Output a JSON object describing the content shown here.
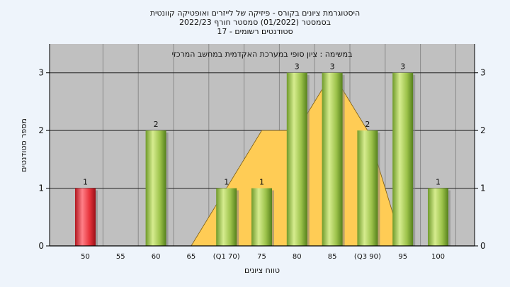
{
  "header": {
    "title_line1": "היסטוגרמת ציונים בקורס - פיזיקה של לייזרים ואופטיקה קוונטית",
    "title_line2": "בסמסטר (01/2022) סמסטר חורף 2022/23",
    "title_line3": "סטודנטים רשומים - 17"
  },
  "chart_data": {
    "type": "bar",
    "title": "היסטוגרמת ציונים בקורס - פיזיקה של לייזרים ואופטיקה קוונטית",
    "annotation": "במשימה : ציון סופי במערכת האקדמית במחשב המרכזי",
    "xlabel": "טווח ציונים",
    "ylabel": "מספר סטודנטים",
    "ylim": [
      0,
      3.5
    ],
    "yticks": [
      0,
      1,
      2,
      3
    ],
    "categories": [
      "50",
      "55",
      "60",
      "65",
      "(Q1 70)",
      "75",
      "80",
      "85",
      "(Q3 90)",
      "95",
      "100"
    ],
    "values": [
      1,
      0,
      2,
      0,
      1,
      1,
      3,
      3,
      2,
      3,
      1
    ],
    "data_labels": [
      "1",
      "",
      "2",
      "",
      "1",
      "1",
      "3",
      "3",
      "2",
      "3",
      "1"
    ],
    "area_values": [
      0,
      0,
      0,
      0,
      1,
      2,
      2,
      3,
      2,
      0,
      0
    ],
    "highlight_category": "50",
    "colors": {
      "highlight_bar": "#e8343c",
      "bar": "#9cc24a",
      "area": "#ffcc55",
      "plot_background": "#c0c0c0",
      "page_background": "#eef4fb"
    },
    "grid": true
  }
}
